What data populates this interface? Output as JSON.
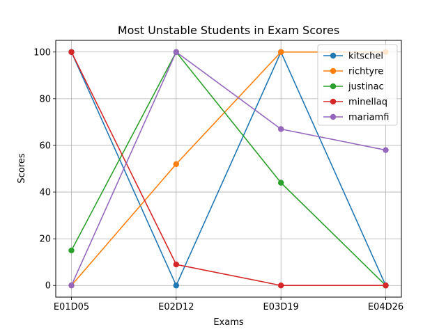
{
  "chart_data": {
    "type": "line",
    "title": "Most Unstable Students in Exam Scores",
    "xlabel": "Exams",
    "ylabel": "Scores",
    "categories": [
      "E01D05",
      "E02D12",
      "E03D19",
      "E04D26"
    ],
    "ylim": [
      -5,
      105
    ],
    "yticks": [
      0,
      20,
      40,
      60,
      80,
      100
    ],
    "grid": true,
    "legend_position": "top-right",
    "series": [
      {
        "name": "kitschel",
        "color": "#1f77b4",
        "values": [
          100,
          0,
          100,
          0
        ]
      },
      {
        "name": "richtyre",
        "color": "#ff7f0e",
        "values": [
          0,
          52,
          100,
          100
        ]
      },
      {
        "name": "justinac",
        "color": "#2ca02c",
        "values": [
          15,
          100,
          44,
          0
        ]
      },
      {
        "name": "minellaq",
        "color": "#d62728",
        "values": [
          100,
          9,
          0,
          0
        ]
      },
      {
        "name": "mariamfi",
        "color": "#9467bd",
        "values": [
          0,
          100,
          67,
          58
        ]
      }
    ]
  }
}
